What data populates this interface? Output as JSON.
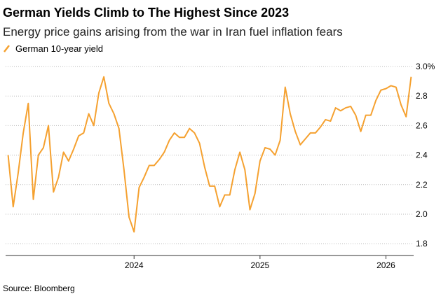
{
  "chart_data": {
    "type": "line",
    "title": "German Yields Climb to The Highest Since 2023",
    "subtitle": "Energy price gains arising from the war in Iran fuel inflation fears",
    "source": "Source: Bloomberg",
    "x": [
      2023.0,
      2023.04,
      2023.08,
      2023.12,
      2023.16,
      2023.2,
      2023.24,
      2023.28,
      2023.32,
      2023.36,
      2023.4,
      2023.44,
      2023.48,
      2023.52,
      2023.56,
      2023.6,
      2023.64,
      2023.68,
      2023.72,
      2023.76,
      2023.8,
      2023.84,
      2023.88,
      2023.92,
      2023.96,
      2024.0,
      2024.04,
      2024.08,
      2024.12,
      2024.16,
      2024.2,
      2024.24,
      2024.28,
      2024.32,
      2024.36,
      2024.4,
      2024.44,
      2024.48,
      2024.52,
      2024.56,
      2024.6,
      2024.64,
      2024.68,
      2024.72,
      2024.76,
      2024.8,
      2024.84,
      2024.88,
      2024.92,
      2024.96,
      2025.0,
      2025.04,
      2025.08,
      2025.12,
      2025.16,
      2025.2,
      2025.24,
      2025.28,
      2025.32,
      2025.36,
      2025.4,
      2025.44,
      2025.48,
      2025.52,
      2025.56,
      2025.6,
      2025.64,
      2025.68,
      2025.72,
      2025.76,
      2025.8,
      2025.84,
      2025.88,
      2025.92,
      2025.96,
      2026.0,
      2026.04,
      2026.08,
      2026.12,
      2026.16,
      2026.2
    ],
    "series": [
      {
        "name": "German 10-year yield",
        "color": "#f5a130",
        "values": [
          2.4,
          2.05,
          2.28,
          2.55,
          2.75,
          2.1,
          2.4,
          2.45,
          2.6,
          2.15,
          2.25,
          2.42,
          2.36,
          2.44,
          2.53,
          2.55,
          2.68,
          2.6,
          2.82,
          2.93,
          2.75,
          2.68,
          2.58,
          2.3,
          1.98,
          1.88,
          2.18,
          2.25,
          2.33,
          2.33,
          2.37,
          2.42,
          2.5,
          2.55,
          2.52,
          2.52,
          2.58,
          2.55,
          2.48,
          2.32,
          2.19,
          2.19,
          2.05,
          2.13,
          2.13,
          2.3,
          2.42,
          2.3,
          2.03,
          2.14,
          2.36,
          2.45,
          2.44,
          2.4,
          2.5,
          2.86,
          2.68,
          2.56,
          2.47,
          2.51,
          2.55,
          2.55,
          2.59,
          2.64,
          2.63,
          2.72,
          2.7,
          2.72,
          2.73,
          2.67,
          2.56,
          2.67,
          2.67,
          2.77,
          2.84,
          2.85,
          2.87,
          2.86,
          2.74,
          2.66,
          2.93
        ]
      }
    ],
    "xlim": [
      2022.98,
      2026.22
    ],
    "xticks": [
      2024,
      2025,
      2026
    ],
    "ylim": [
      1.72,
      3.0
    ],
    "yticks": [
      {
        "value": 1.8,
        "label": "1.8"
      },
      {
        "value": 2.0,
        "label": "2.0"
      },
      2.2,
      2.4,
      2.6,
      2.8,
      {
        "value": 3.0,
        "label": "3.0%"
      }
    ],
    "grid": true
  }
}
